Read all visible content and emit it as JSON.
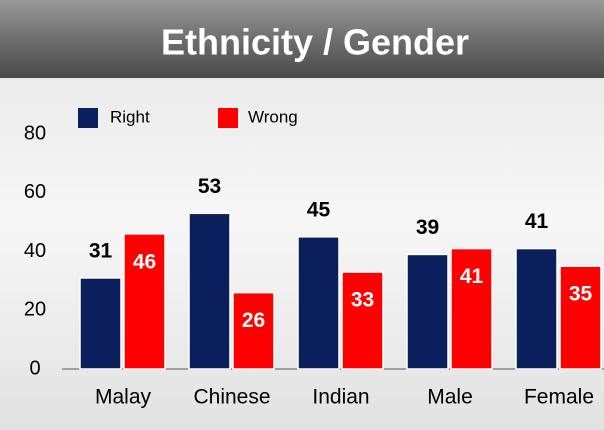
{
  "chart_data": {
    "type": "bar",
    "title": "Ethnicity / Gender",
    "categories": [
      "Malay",
      "Chinese",
      "Indian",
      "Male",
      "Female"
    ],
    "series": [
      {
        "name": "Right",
        "color": "#0b1f5c",
        "values": [
          31,
          53,
          45,
          39,
          41
        ]
      },
      {
        "name": "Wrong",
        "color": "#ff0000",
        "values": [
          46,
          26,
          33,
          41,
          35
        ]
      }
    ],
    "ylim": [
      0,
      80
    ],
    "yticks": [
      0,
      20,
      40,
      60,
      80
    ],
    "grid": false,
    "legend": "top-left"
  }
}
